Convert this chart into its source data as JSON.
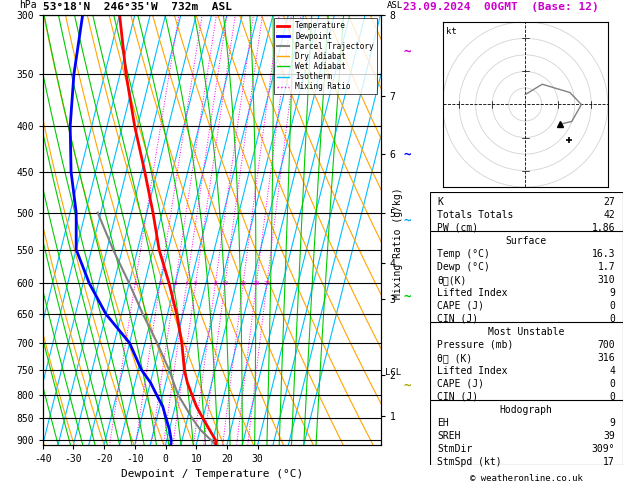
{
  "title_left": "53°18'N  246°35'W  732m  ASL",
  "title_right": "23.09.2024  00GMT  (Base: 12)",
  "xlabel": "Dewpoint / Temperature (°C)",
  "pres_levels": [
    300,
    350,
    400,
    450,
    500,
    550,
    600,
    650,
    700,
    750,
    800,
    850,
    900
  ],
  "P_min": 300,
  "P_max": 910,
  "T_min": -40,
  "T_max": 35,
  "skew_factor": 35,
  "isotherm_color": "#00bfff",
  "dry_adiabat_color": "#ffa500",
  "wet_adiabat_color": "#00cc00",
  "mixing_ratio_color": "#ff00ff",
  "mixing_ratio_values": [
    1,
    2,
    3,
    4,
    5,
    8,
    10,
    15,
    20,
    25
  ],
  "temperature_profile": {
    "pressure": [
      910,
      900,
      875,
      850,
      825,
      800,
      775,
      750,
      700,
      650,
      600,
      550,
      500,
      450,
      400,
      350,
      300
    ],
    "temp_C": [
      16.3,
      16.0,
      13.0,
      10.0,
      7.0,
      4.5,
      2.0,
      0.0,
      -3.0,
      -7.0,
      -12.0,
      -18.0,
      -23.0,
      -29.0,
      -36.0,
      -43.0,
      -50.0
    ]
  },
  "dewpoint_profile": {
    "pressure": [
      910,
      900,
      875,
      850,
      825,
      800,
      775,
      750,
      700,
      650,
      600,
      550,
      500,
      450,
      400,
      350,
      300
    ],
    "temp_C": [
      1.7,
      1.5,
      0.0,
      -2.0,
      -4.0,
      -7.0,
      -10.0,
      -14.0,
      -20.0,
      -30.0,
      -38.0,
      -45.0,
      -48.0,
      -53.0,
      -57.0,
      -60.0,
      -62.0
    ]
  },
  "parcel_profile": {
    "pressure": [
      910,
      875,
      850,
      800,
      750,
      700,
      650,
      600,
      550,
      500
    ],
    "temp_C": [
      16.3,
      10.0,
      6.5,
      0.0,
      -5.0,
      -11.0,
      -18.0,
      -25.0,
      -33.0,
      -41.0
    ]
  },
  "lcl_pressure": 755,
  "legend_items": [
    {
      "label": "Temperature",
      "color": "red",
      "lw": 2,
      "ls": "-"
    },
    {
      "label": "Dewpoint",
      "color": "blue",
      "lw": 2,
      "ls": "-"
    },
    {
      "label": "Parcel Trajectory",
      "color": "gray",
      "lw": 1.5,
      "ls": "-"
    },
    {
      "label": "Dry Adiabat",
      "color": "#ffa500",
      "lw": 1,
      "ls": "-"
    },
    {
      "label": "Wet Adiabat",
      "color": "#00cc00",
      "lw": 1,
      "ls": "-"
    },
    {
      "label": "Isotherm",
      "color": "#00bfff",
      "lw": 1,
      "ls": "-"
    },
    {
      "label": "Mixing Ratio",
      "color": "#ff00ff",
      "lw": 1,
      "ls": ":"
    }
  ],
  "stats": {
    "K": 27,
    "Totals_Totals": 42,
    "PW_cm": 1.86,
    "Surface_Temp": 16.3,
    "Surface_Dewp": 1.7,
    "Surface_ThetaE": 310,
    "Surface_LI": 9,
    "Surface_CAPE": 0,
    "Surface_CIN": 0,
    "MU_Pressure": 700,
    "MU_ThetaE": 316,
    "MU_LI": 4,
    "MU_CAPE": 0,
    "MU_CIN": 0,
    "EH": 9,
    "SREH": 39,
    "StmDir": "309°",
    "StmSpd_kt": 17
  },
  "hodo_winds": [
    {
      "spd": 3,
      "dir": 180
    },
    {
      "spd": 8,
      "dir": 220
    },
    {
      "spd": 14,
      "dir": 255
    },
    {
      "spd": 17,
      "dir": 270
    },
    {
      "spd": 15,
      "dir": 290
    },
    {
      "spd": 12,
      "dir": 300
    }
  ],
  "wind_barbs_right": [
    {
      "pressure": 330,
      "color": "#cc00cc",
      "u": -8,
      "v": 5
    },
    {
      "pressure": 430,
      "color": "#0000ff",
      "u": -5,
      "v": 8
    },
    {
      "pressure": 510,
      "color": "#00aaff",
      "u": -3,
      "v": 6
    },
    {
      "pressure": 620,
      "color": "#00cc00",
      "u": -2,
      "v": 4
    },
    {
      "pressure": 780,
      "color": "#aaaa00",
      "u": -2,
      "v": 3
    }
  ],
  "copyright": "© weatheronline.co.uk"
}
